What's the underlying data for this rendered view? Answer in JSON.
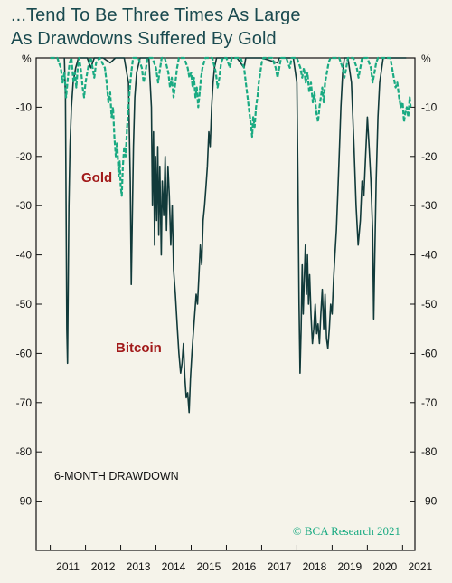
{
  "title": {
    "line1": "...Tend To Be Three Times As Large",
    "line2": "As Drawdowns Suffered By Gold"
  },
  "credit": "© BCA Research 2021",
  "colors": {
    "title": "#1a4a4f",
    "gold_series": "#1aaa82",
    "bitcoin_series": "#113a3a",
    "series_label": "#a21a1a",
    "background": "#f5f3ea"
  },
  "chart_data": {
    "type": "line",
    "ylabel_left": "%",
    "ylabel_right": "%",
    "annotation": "6-MONTH DRAWDOWN",
    "ylim": [
      -100,
      0
    ],
    "yticks": [
      -10,
      -20,
      -30,
      -40,
      -50,
      -60,
      -70,
      -80,
      -90
    ],
    "xlim": [
      2010.6,
      2021.35
    ],
    "xticks": [
      "2011",
      "2012",
      "2013",
      "2014",
      "2015",
      "2016",
      "2017",
      "2018",
      "2019",
      "2020",
      "2021"
    ],
    "grid": false,
    "series": [
      {
        "name": "Bitcoin",
        "style": "solid",
        "points": [
          [
            2011.4,
            0
          ],
          [
            2011.43,
            -8
          ],
          [
            2011.45,
            -30
          ],
          [
            2011.47,
            -55
          ],
          [
            2011.49,
            -62
          ],
          [
            2011.51,
            -45
          ],
          [
            2011.53,
            -30
          ],
          [
            2011.56,
            -18
          ],
          [
            2011.6,
            -10
          ],
          [
            2011.65,
            -5
          ],
          [
            2011.72,
            -2
          ],
          [
            2011.8,
            0
          ],
          [
            2012.05,
            0
          ],
          [
            2012.15,
            -2
          ],
          [
            2012.25,
            0
          ],
          [
            2012.5,
            0
          ],
          [
            2012.7,
            -1
          ],
          [
            2012.85,
            0
          ],
          [
            2013.1,
            0
          ],
          [
            2013.22,
            -5
          ],
          [
            2013.27,
            -25
          ],
          [
            2013.3,
            -46
          ],
          [
            2013.33,
            -32
          ],
          [
            2013.36,
            -18
          ],
          [
            2013.4,
            -8
          ],
          [
            2013.45,
            -3
          ],
          [
            2013.55,
            0
          ],
          [
            2013.8,
            0
          ],
          [
            2013.87,
            -10
          ],
          [
            2013.9,
            -30
          ],
          [
            2013.93,
            -15
          ],
          [
            2013.96,
            -38
          ],
          [
            2013.99,
            -20
          ],
          [
            2014.02,
            -33
          ],
          [
            2014.05,
            -18
          ],
          [
            2014.08,
            -36
          ],
          [
            2014.11,
            -22
          ],
          [
            2014.15,
            -40
          ],
          [
            2014.18,
            -25
          ],
          [
            2014.22,
            -32
          ],
          [
            2014.26,
            -20
          ],
          [
            2014.3,
            -35
          ],
          [
            2014.34,
            -22
          ],
          [
            2014.38,
            -28
          ],
          [
            2014.42,
            -38
          ],
          [
            2014.46,
            -30
          ],
          [
            2014.5,
            -43
          ],
          [
            2014.55,
            -48
          ],
          [
            2014.6,
            -54
          ],
          [
            2014.65,
            -60
          ],
          [
            2014.7,
            -64
          ],
          [
            2014.74,
            -62
          ],
          [
            2014.78,
            -58
          ],
          [
            2014.82,
            -65
          ],
          [
            2014.86,
            -69
          ],
          [
            2014.9,
            -68
          ],
          [
            2014.94,
            -72
          ],
          [
            2014.98,
            -65
          ],
          [
            2015.02,
            -60
          ],
          [
            2015.06,
            -56
          ],
          [
            2015.1,
            -52
          ],
          [
            2015.14,
            -48
          ],
          [
            2015.18,
            -50
          ],
          [
            2015.22,
            -44
          ],
          [
            2015.26,
            -38
          ],
          [
            2015.3,
            -42
          ],
          [
            2015.34,
            -33
          ],
          [
            2015.38,
            -30
          ],
          [
            2015.42,
            -26
          ],
          [
            2015.46,
            -22
          ],
          [
            2015.5,
            -15
          ],
          [
            2015.54,
            -18
          ],
          [
            2015.58,
            -10
          ],
          [
            2015.62,
            -5
          ],
          [
            2015.66,
            -2
          ],
          [
            2015.72,
            0
          ],
          [
            2016.0,
            0
          ],
          [
            2016.3,
            0
          ],
          [
            2016.5,
            -2
          ],
          [
            2016.55,
            0
          ],
          [
            2017.0,
            0
          ],
          [
            2017.45,
            -1
          ],
          [
            2017.5,
            0
          ],
          [
            2017.8,
            0
          ],
          [
            2017.9,
            0
          ],
          [
            2018.0,
            -5
          ],
          [
            2018.03,
            -25
          ],
          [
            2018.06,
            -50
          ],
          [
            2018.09,
            -64
          ],
          [
            2018.12,
            -55
          ],
          [
            2018.15,
            -42
          ],
          [
            2018.18,
            -52
          ],
          [
            2018.21,
            -45
          ],
          [
            2018.24,
            -38
          ],
          [
            2018.27,
            -48
          ],
          [
            2018.3,
            -40
          ],
          [
            2018.33,
            -50
          ],
          [
            2018.36,
            -44
          ],
          [
            2018.4,
            -52
          ],
          [
            2018.44,
            -58
          ],
          [
            2018.48,
            -55
          ],
          [
            2018.52,
            -50
          ],
          [
            2018.56,
            -56
          ],
          [
            2018.6,
            -54
          ],
          [
            2018.64,
            -58
          ],
          [
            2018.68,
            -52
          ],
          [
            2018.72,
            -47
          ],
          [
            2018.76,
            -55
          ],
          [
            2018.8,
            -48
          ],
          [
            2018.84,
            -57
          ],
          [
            2018.88,
            -59
          ],
          [
            2018.92,
            -55
          ],
          [
            2018.96,
            -50
          ],
          [
            2019.0,
            -52
          ],
          [
            2019.04,
            -45
          ],
          [
            2019.08,
            -40
          ],
          [
            2019.12,
            -35
          ],
          [
            2019.16,
            -28
          ],
          [
            2019.2,
            -20
          ],
          [
            2019.25,
            -10
          ],
          [
            2019.3,
            -3
          ],
          [
            2019.35,
            0
          ],
          [
            2019.45,
            0
          ],
          [
            2019.55,
            -5
          ],
          [
            2019.62,
            -18
          ],
          [
            2019.68,
            -30
          ],
          [
            2019.74,
            -38
          ],
          [
            2019.8,
            -33
          ],
          [
            2019.85,
            -25
          ],
          [
            2019.9,
            -28
          ],
          [
            2019.95,
            -20
          ],
          [
            2020.0,
            -12
          ],
          [
            2020.05,
            -18
          ],
          [
            2020.1,
            -25
          ],
          [
            2020.15,
            -35
          ],
          [
            2020.18,
            -53
          ],
          [
            2020.21,
            -40
          ],
          [
            2020.25,
            -25
          ],
          [
            2020.3,
            -12
          ],
          [
            2020.35,
            -5
          ],
          [
            2020.45,
            0
          ],
          [
            2020.8,
            0
          ],
          [
            2021.0,
            0
          ],
          [
            2021.1,
            0
          ]
        ]
      },
      {
        "name": "Gold",
        "style": "dashed",
        "points": [
          [
            2011.0,
            0
          ],
          [
            2011.2,
            0
          ],
          [
            2011.3,
            -2
          ],
          [
            2011.35,
            -5
          ],
          [
            2011.4,
            -3
          ],
          [
            2011.45,
            -8
          ],
          [
            2011.5,
            -4
          ],
          [
            2011.55,
            -1
          ],
          [
            2011.6,
            0
          ],
          [
            2011.66,
            -5
          ],
          [
            2011.7,
            -3
          ],
          [
            2011.74,
            -6
          ],
          [
            2011.78,
            -2
          ],
          [
            2011.82,
            0
          ],
          [
            2011.88,
            -3
          ],
          [
            2011.92,
            -6
          ],
          [
            2011.96,
            -8
          ],
          [
            2012.0,
            -5
          ],
          [
            2012.05,
            -3
          ],
          [
            2012.1,
            -1
          ],
          [
            2012.15,
            0
          ],
          [
            2012.2,
            -2
          ],
          [
            2012.25,
            -4
          ],
          [
            2012.3,
            -1
          ],
          [
            2012.4,
            0
          ],
          [
            2012.55,
            -2
          ],
          [
            2012.6,
            -5
          ],
          [
            2012.65,
            -9
          ],
          [
            2012.7,
            -7
          ],
          [
            2012.74,
            -12
          ],
          [
            2012.78,
            -10
          ],
          [
            2012.82,
            -16
          ],
          [
            2012.86,
            -20
          ],
          [
            2012.9,
            -17
          ],
          [
            2012.94,
            -24
          ],
          [
            2012.97,
            -21
          ],
          [
            2013.0,
            -26
          ],
          [
            2013.03,
            -28
          ],
          [
            2013.06,
            -22
          ],
          [
            2013.1,
            -18
          ],
          [
            2013.14,
            -20
          ],
          [
            2013.18,
            -14
          ],
          [
            2013.22,
            -10
          ],
          [
            2013.26,
            -6
          ],
          [
            2013.3,
            -3
          ],
          [
            2013.35,
            0
          ],
          [
            2013.5,
            0
          ],
          [
            2013.6,
            -2
          ],
          [
            2013.65,
            -5
          ],
          [
            2013.7,
            -3
          ],
          [
            2013.76,
            0
          ],
          [
            2013.9,
            0
          ],
          [
            2014.0,
            -2
          ],
          [
            2014.06,
            -5
          ],
          [
            2014.1,
            -3
          ],
          [
            2014.16,
            0
          ],
          [
            2014.25,
            0
          ],
          [
            2014.35,
            -3
          ],
          [
            2014.4,
            -6
          ],
          [
            2014.45,
            -4
          ],
          [
            2014.5,
            -8
          ],
          [
            2014.55,
            -5
          ],
          [
            2014.6,
            -2
          ],
          [
            2014.65,
            0
          ],
          [
            2014.8,
            0
          ],
          [
            2014.9,
            -2
          ],
          [
            2014.95,
            -4
          ],
          [
            2015.0,
            -3
          ],
          [
            2015.04,
            -6
          ],
          [
            2015.08,
            -4
          ],
          [
            2015.12,
            -8
          ],
          [
            2015.16,
            -6
          ],
          [
            2015.2,
            -10
          ],
          [
            2015.24,
            -7
          ],
          [
            2015.28,
            -4
          ],
          [
            2015.32,
            -2
          ],
          [
            2015.4,
            0
          ],
          [
            2015.6,
            0
          ],
          [
            2015.7,
            -3
          ],
          [
            2015.75,
            -6
          ],
          [
            2015.8,
            -4
          ],
          [
            2015.85,
            -1
          ],
          [
            2015.9,
            0
          ],
          [
            2016.0,
            0
          ],
          [
            2016.1,
            -2
          ],
          [
            2016.15,
            0
          ],
          [
            2016.4,
            0
          ],
          [
            2016.5,
            -2
          ],
          [
            2016.55,
            -5
          ],
          [
            2016.6,
            -8
          ],
          [
            2016.65,
            -11
          ],
          [
            2016.7,
            -14
          ],
          [
            2016.73,
            -16
          ],
          [
            2016.76,
            -12
          ],
          [
            2016.8,
            -14
          ],
          [
            2016.84,
            -10
          ],
          [
            2016.88,
            -8
          ],
          [
            2016.92,
            -5
          ],
          [
            2016.96,
            -3
          ],
          [
            2017.0,
            -1
          ],
          [
            2017.05,
            0
          ],
          [
            2017.3,
            0
          ],
          [
            2017.4,
            -2
          ],
          [
            2017.45,
            -4
          ],
          [
            2017.5,
            -2
          ],
          [
            2017.55,
            0
          ],
          [
            2017.7,
            0
          ],
          [
            2017.8,
            -2
          ],
          [
            2017.85,
            0
          ],
          [
            2018.0,
            0
          ],
          [
            2018.1,
            -2
          ],
          [
            2018.15,
            -4
          ],
          [
            2018.2,
            -2
          ],
          [
            2018.25,
            -5
          ],
          [
            2018.3,
            -3
          ],
          [
            2018.35,
            -7
          ],
          [
            2018.4,
            -5
          ],
          [
            2018.45,
            -9
          ],
          [
            2018.5,
            -7
          ],
          [
            2018.55,
            -11
          ],
          [
            2018.6,
            -13
          ],
          [
            2018.64,
            -10
          ],
          [
            2018.68,
            -8
          ],
          [
            2018.72,
            -6
          ],
          [
            2018.76,
            -9
          ],
          [
            2018.8,
            -5
          ],
          [
            2018.85,
            -3
          ],
          [
            2018.9,
            -1
          ],
          [
            2018.95,
            0
          ],
          [
            2019.2,
            0
          ],
          [
            2019.3,
            -2
          ],
          [
            2019.35,
            -4
          ],
          [
            2019.4,
            -2
          ],
          [
            2019.45,
            0
          ],
          [
            2019.6,
            0
          ],
          [
            2019.7,
            -2
          ],
          [
            2019.75,
            -4
          ],
          [
            2019.8,
            -2
          ],
          [
            2019.85,
            0
          ],
          [
            2020.0,
            0
          ],
          [
            2020.1,
            -2
          ],
          [
            2020.15,
            -5
          ],
          [
            2020.2,
            -3
          ],
          [
            2020.25,
            -1
          ],
          [
            2020.3,
            0
          ],
          [
            2020.6,
            0
          ],
          [
            2020.65,
            0
          ],
          [
            2020.7,
            -2
          ],
          [
            2020.75,
            -4
          ],
          [
            2020.8,
            -6
          ],
          [
            2020.85,
            -5
          ],
          [
            2020.9,
            -8
          ],
          [
            2020.95,
            -10
          ],
          [
            2021.0,
            -9
          ],
          [
            2021.04,
            -13
          ],
          [
            2021.08,
            -11
          ],
          [
            2021.12,
            -10
          ],
          [
            2021.16,
            -12
          ],
          [
            2021.2,
            -8
          ],
          [
            2021.23,
            -10
          ]
        ]
      }
    ],
    "series_labels": [
      "Gold",
      "Bitcoin"
    ]
  }
}
